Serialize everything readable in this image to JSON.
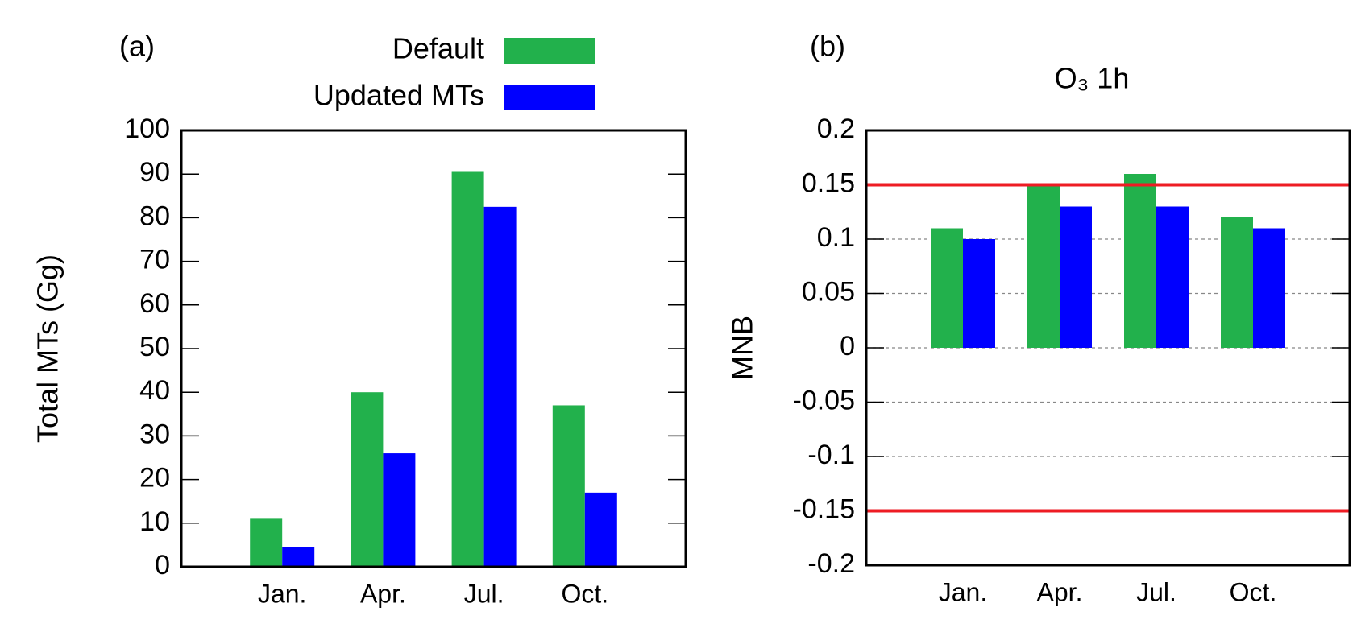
{
  "chart_data": [
    {
      "type": "bar",
      "panel_label": "(a)",
      "y_label": "Total MTs (Gg)",
      "categories": [
        "Jan.",
        "Apr.",
        "Jul.",
        "Oct."
      ],
      "series": [
        {
          "name": "Default",
          "color": "#22b14c",
          "values": [
            11,
            40,
            90.5,
            37
          ]
        },
        {
          "name": "Updated MTs",
          "color": "#0000ff",
          "values": [
            4.5,
            26,
            82.5,
            17
          ]
        }
      ],
      "ylim": [
        0,
        100
      ],
      "yticks": [
        0,
        10,
        20,
        30,
        40,
        50,
        60,
        70,
        80,
        90,
        100
      ],
      "grid": false
    },
    {
      "type": "bar",
      "panel_label": "(b)",
      "title": "O₃ 1h",
      "y_label": "MNB",
      "categories": [
        "Jan.",
        "Apr.",
        "Jul.",
        "Oct."
      ],
      "series": [
        {
          "color": "#22b14c",
          "values": [
            0.11,
            0.15,
            0.16,
            0.12
          ]
        },
        {
          "color": "#0000ff",
          "values": [
            0.1,
            0.13,
            0.13,
            0.11
          ]
        }
      ],
      "hlines": [
        0.15,
        -0.15
      ],
      "hline_color": "#ee1c24",
      "ylim": [
        -0.2,
        0.2
      ],
      "yticks": [
        -0.2,
        -0.15,
        -0.1,
        -0.05,
        0,
        0.05,
        0.1,
        0.15,
        0.2
      ],
      "grid": true
    }
  ]
}
